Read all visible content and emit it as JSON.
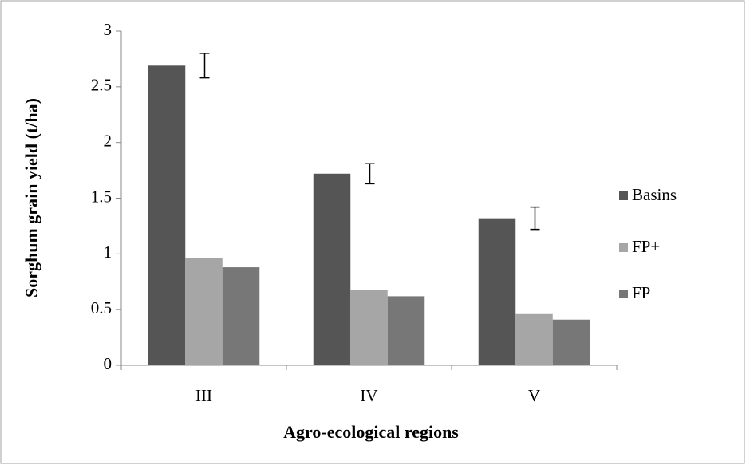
{
  "chart_data": {
    "type": "bar",
    "x_label": "Agro-ecological regions",
    "y_label": "Sorghum grain yield (t/ha)",
    "categories": [
      "III",
      "IV",
      "V"
    ],
    "series": [
      {
        "name": "Basins",
        "color": "#555555",
        "values": [
          2.69,
          1.72,
          1.32
        ],
        "errors": [
          0.11,
          0.09,
          0.1
        ]
      },
      {
        "name": "FP+",
        "color": "#a6a6a6",
        "values": [
          0.96,
          0.68,
          0.46
        ]
      },
      {
        "name": "FP",
        "color": "#777777",
        "values": [
          0.88,
          0.62,
          0.41
        ]
      }
    ],
    "ylim": [
      0,
      3
    ],
    "yticks": [
      0,
      0.5,
      1,
      1.5,
      2,
      2.5,
      3
    ],
    "legend": "right",
    "grid": false
  }
}
